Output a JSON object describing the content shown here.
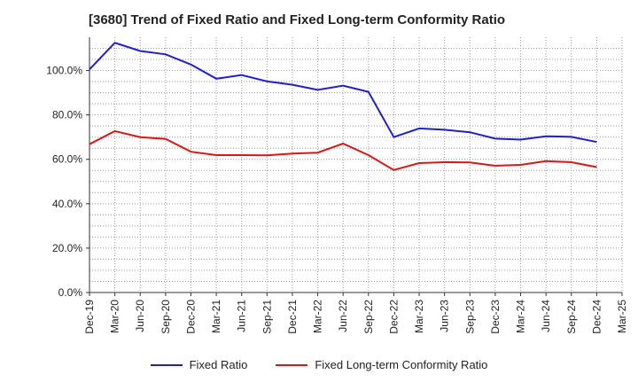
{
  "chart_data": {
    "type": "line",
    "title": "[3680]  Trend of Fixed Ratio and Fixed Long-term Conformity Ratio",
    "xlabel": "",
    "ylabel": "",
    "ylim": [
      0,
      115
    ],
    "yticks": [
      0,
      20,
      40,
      60,
      80,
      100
    ],
    "ytick_labels": [
      "0.0%",
      "20.0%",
      "40.0%",
      "60.0%",
      "80.0%",
      "100.0%"
    ],
    "grid": true,
    "legend_position": "bottom",
    "x": [
      "Dec-19",
      "Mar-20",
      "Jun-20",
      "Sep-20",
      "Dec-20",
      "Mar-21",
      "Jun-21",
      "Sep-21",
      "Dec-21",
      "Mar-22",
      "Jun-22",
      "Sep-22",
      "Dec-22",
      "Mar-23",
      "Jun-23",
      "Sep-23",
      "Dec-23",
      "Mar-24",
      "Jun-24",
      "Sep-24",
      "Dec-24",
      "Mar-25"
    ],
    "series": [
      {
        "name": "Fixed Ratio",
        "color": "#1f1fd0",
        "values": [
          100.5,
          112.5,
          108.8,
          107.3,
          102.7,
          96.3,
          98.0,
          95.1,
          93.6,
          91.3,
          93.2,
          90.4,
          70.0,
          73.9,
          73.3,
          72.2,
          69.3,
          68.9,
          70.4,
          70.1,
          67.8,
          null
        ]
      },
      {
        "name": "Fixed Long-term Conformity Ratio",
        "color": "#e01414",
        "values": [
          66.8,
          72.7,
          70.0,
          69.2,
          63.4,
          61.9,
          61.9,
          61.8,
          62.6,
          63.0,
          67.1,
          61.9,
          55.2,
          58.3,
          58.7,
          58.6,
          57.1,
          57.5,
          59.2,
          58.7,
          56.5,
          null
        ]
      }
    ]
  }
}
